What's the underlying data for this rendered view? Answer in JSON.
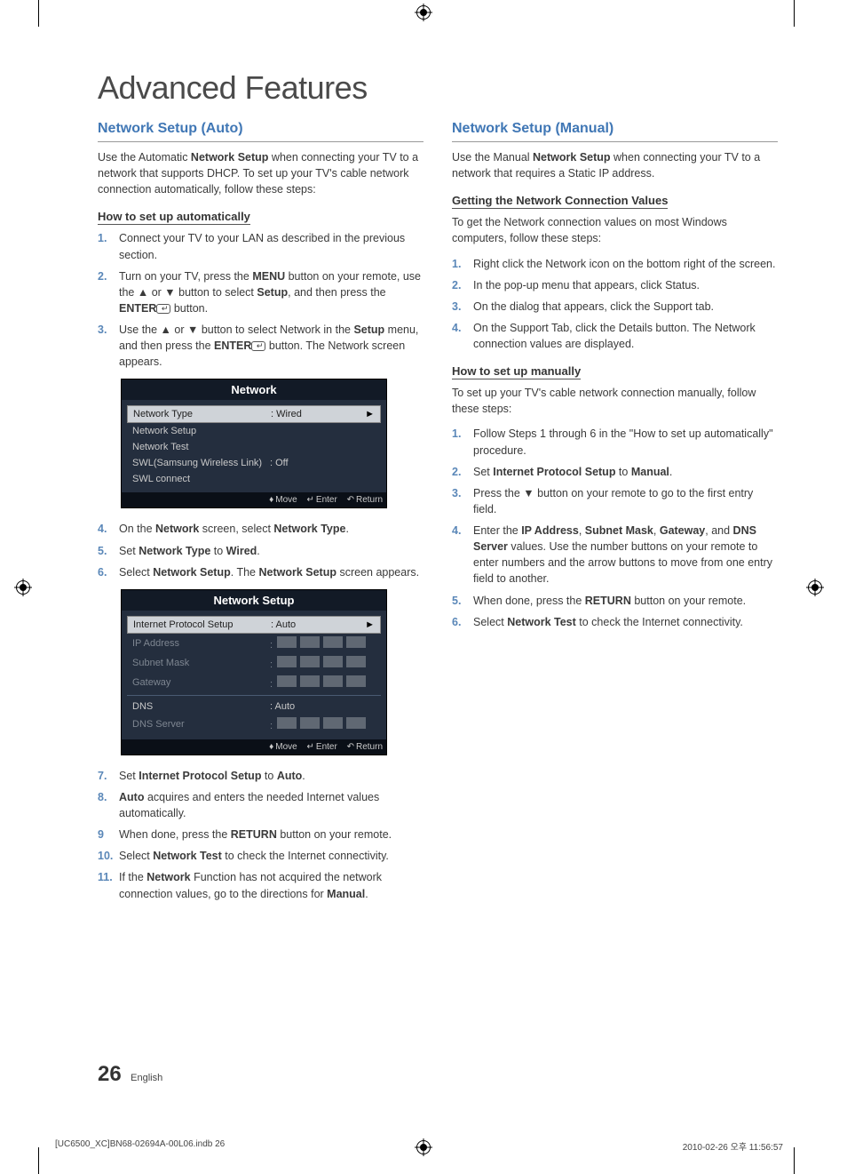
{
  "title": "Advanced Features",
  "left": {
    "section_title": "Network Setup (Auto)",
    "intro": "Use the Automatic Network Setup when connecting your TV to a network that supports DHCP. To set up your TV's cable network connection automatically, follow these steps:",
    "sub1": "How to set up automatically",
    "steps1": {
      "n1": "1.",
      "t1": "Connect your TV to your LAN as described in the previous section.",
      "n2": "2.",
      "t2a": "Turn on your TV, press the ",
      "t2b": "MENU",
      "t2c": " button on your remote, use the ▲ or ▼ button to select ",
      "t2d": "Setup",
      "t2e": ", and then press the ",
      "t2f": "ENTER",
      "t2g": " button.",
      "n3": "3.",
      "t3a": "Use the ▲ or ▼ button to select Network in the ",
      "t3b": "Setup",
      "t3c": " menu, and then press the ",
      "t3d": "ENTER",
      "t3e": " button. The Network screen appears."
    },
    "osd_network": {
      "title": "Network",
      "r1_label": "Network Type",
      "r1_value": ": Wired",
      "r2": "Network Setup",
      "r3": "Network Test",
      "r4_label": "SWL(Samsung Wireless Link)",
      "r4_value": ": Off",
      "r5": "SWL connect",
      "footer_move": "Move",
      "footer_enter": "Enter",
      "footer_return": "Return"
    },
    "steps2": {
      "n4": "4.",
      "t4a": "On the ",
      "t4b": "Network",
      "t4c": " screen, select ",
      "t4d": "Network Type",
      "t4e": ".",
      "n5": "5.",
      "t5a": "Set ",
      "t5b": "Network Type",
      "t5c": " to ",
      "t5d": "Wired",
      "t5e": ".",
      "n6": "6.",
      "t6a": "Select ",
      "t6b": "Network Setup",
      "t6c": ". The ",
      "t6d": "Network Setup",
      "t6e": " screen appears."
    },
    "osd_setup": {
      "title": "Network Setup",
      "r1_label": "Internet Protocol Setup",
      "r1_value": ": Auto",
      "r2": "IP Address",
      "r3": "Subnet Mask",
      "r4": "Gateway",
      "r5_label": "DNS",
      "r5_value": ": Auto",
      "r6": "DNS Server",
      "footer_move": "Move",
      "footer_enter": "Enter",
      "footer_return": "Return"
    },
    "steps3": {
      "n7": "7.",
      "t7a": "Set ",
      "t7b": "Internet Protocol Setup",
      "t7c": " to ",
      "t7d": "Auto",
      "t7e": ".",
      "n8": "8.",
      "t8a": "Auto",
      "t8b": " acquires and enters the needed Internet values automatically.",
      "n9": "9",
      "t9a": "When done, press the ",
      "t9b": "RETURN",
      "t9c": " button on your remote.",
      "n10": "10.",
      "t10a": "Select ",
      "t10b": "Network Test",
      "t10c": " to check the Internet connectivity.",
      "n11": "11.",
      "t11a": "If the ",
      "t11b": "Network",
      "t11c": " Function has not acquired the network connection values, go to the directions for ",
      "t11d": "Manual",
      "t11e": "."
    }
  },
  "right": {
    "section_title": "Network Setup (Manual)",
    "intro": "Use the Manual Network Setup when connecting your TV to a network that requires a Static IP address.",
    "sub1": "Getting the Network Connection Values",
    "desc1": "To get the Network connection values on most Windows computers, follow these steps:",
    "steps1": {
      "n1": "1.",
      "t1": "Right click the Network icon on the bottom right of the screen.",
      "n2": "2.",
      "t2": "In the pop-up menu that appears, click Status.",
      "n3": "3.",
      "t3": "On the dialog that appears, click the Support tab.",
      "n4": "4.",
      "t4": "On the Support Tab, click the Details button. The Network connection values are displayed."
    },
    "sub2": "How to set up manually",
    "desc2": "To set up your TV's cable network connection manually, follow these steps:",
    "steps2": {
      "n1": "1.",
      "t1": "Follow Steps 1 through 6 in the \"How to set up automatically\" procedure.",
      "n2": "2.",
      "t2a": "Set ",
      "t2b": "Internet Protocol Setup",
      "t2c": " to ",
      "t2d": "Manual",
      "t2e": ".",
      "n3": "3.",
      "t3": "Press the ▼ button on your remote to go to the first entry field.",
      "n4": "4.",
      "t4a": "Enter the ",
      "t4b": "IP Address",
      "t4c": ", ",
      "t4d": "Subnet Mask",
      "t4e": ", ",
      "t4f": "Gateway",
      "t4g": ", and ",
      "t4h": "DNS Server",
      "t4i": " values. Use the number buttons on your remote to enter numbers and the arrow buttons to move from one entry field to another.",
      "n5": "5.",
      "t5a": "When done, press the ",
      "t5b": "RETURN",
      "t5c": " button on your remote.",
      "n6": "6.",
      "t6a": "Select ",
      "t6b": "Network Test",
      "t6c": " to check the Internet connectivity."
    }
  },
  "footer": {
    "page_num": "26",
    "lang": "English",
    "file": "[UC6500_XC]BN68-02694A-00L06.indb   26",
    "timestamp": "2010-02-26   오후 11:56:57"
  },
  "colors": {
    "heading_blue": "#4077b5",
    "step_num_blue": "#5a87b8",
    "osd_dark": "#242e3e",
    "osd_title_bg": "#121a26",
    "osd_footer_bg": "#0a0f17"
  }
}
